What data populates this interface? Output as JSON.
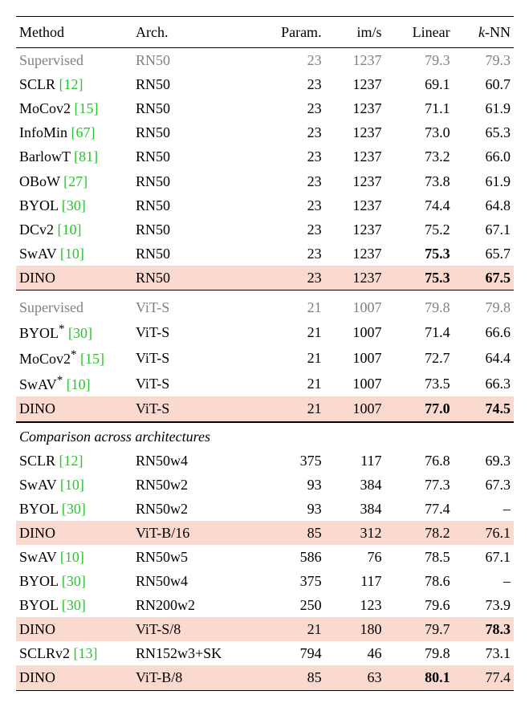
{
  "headers": {
    "method": "Method",
    "arch": "Arch.",
    "param": "Param.",
    "ims": "im/s",
    "linear": "Linear",
    "knn_prefix": "k",
    "knn_suffix": "-NN"
  },
  "section_label": "Comparison across architectures",
  "rows": [
    {
      "sec": "a",
      "gray": true,
      "hl": false,
      "method": "Supervised",
      "cite": "",
      "star": false,
      "arch": "RN50",
      "param": "23",
      "ims": "1237",
      "lin": "79.3",
      "lin_b": false,
      "knn": "79.3",
      "knn_b": false
    },
    {
      "sec": "a",
      "gray": false,
      "hl": false,
      "method": "SCLR",
      "cite": "[12]",
      "star": false,
      "arch": "RN50",
      "param": "23",
      "ims": "1237",
      "lin": "69.1",
      "lin_b": false,
      "knn": "60.7",
      "knn_b": false
    },
    {
      "sec": "a",
      "gray": false,
      "hl": false,
      "method": "MoCov2",
      "cite": "[15]",
      "star": false,
      "arch": "RN50",
      "param": "23",
      "ims": "1237",
      "lin": "71.1",
      "lin_b": false,
      "knn": "61.9",
      "knn_b": false
    },
    {
      "sec": "a",
      "gray": false,
      "hl": false,
      "method": "InfoMin",
      "cite": "[67]",
      "star": false,
      "arch": "RN50",
      "param": "23",
      "ims": "1237",
      "lin": "73.0",
      "lin_b": false,
      "knn": "65.3",
      "knn_b": false
    },
    {
      "sec": "a",
      "gray": false,
      "hl": false,
      "method": "BarlowT",
      "cite": "[81]",
      "star": false,
      "arch": "RN50",
      "param": "23",
      "ims": "1237",
      "lin": "73.2",
      "lin_b": false,
      "knn": "66.0",
      "knn_b": false
    },
    {
      "sec": "a",
      "gray": false,
      "hl": false,
      "method": "OBoW",
      "cite": "[27]",
      "star": false,
      "arch": "RN50",
      "param": "23",
      "ims": "1237",
      "lin": "73.8",
      "lin_b": false,
      "knn": "61.9",
      "knn_b": false
    },
    {
      "sec": "a",
      "gray": false,
      "hl": false,
      "method": "BYOL",
      "cite": "[30]",
      "star": false,
      "arch": "RN50",
      "param": "23",
      "ims": "1237",
      "lin": "74.4",
      "lin_b": false,
      "knn": "64.8",
      "knn_b": false
    },
    {
      "sec": "a",
      "gray": false,
      "hl": false,
      "method": "DCv2",
      "cite": "[10]",
      "star": false,
      "arch": "RN50",
      "param": "23",
      "ims": "1237",
      "lin": "75.2",
      "lin_b": false,
      "knn": "67.1",
      "knn_b": false
    },
    {
      "sec": "a",
      "gray": false,
      "hl": false,
      "method": "SwAV",
      "cite": "[10]",
      "star": false,
      "arch": "RN50",
      "param": "23",
      "ims": "1237",
      "lin": "75.3",
      "lin_b": true,
      "knn": "65.7",
      "knn_b": false
    },
    {
      "sec": "a",
      "gray": false,
      "hl": true,
      "method": "DINO",
      "cite": "",
      "star": false,
      "arch": "RN50",
      "param": "23",
      "ims": "1237",
      "lin": "75.3",
      "lin_b": true,
      "knn": "67.5",
      "knn_b": true
    },
    {
      "sec": "b",
      "gray": true,
      "hl": false,
      "method": "Supervised",
      "cite": "",
      "star": false,
      "arch": "ViT-S",
      "param": "21",
      "ims": "1007",
      "lin": "79.8",
      "lin_b": false,
      "knn": "79.8",
      "knn_b": false
    },
    {
      "sec": "b",
      "gray": false,
      "hl": false,
      "method": "BYOL",
      "cite": "[30]",
      "star": true,
      "arch": "ViT-S",
      "param": "21",
      "ims": "1007",
      "lin": "71.4",
      "lin_b": false,
      "knn": "66.6",
      "knn_b": false
    },
    {
      "sec": "b",
      "gray": false,
      "hl": false,
      "method": "MoCov2",
      "cite": "[15]",
      "star": true,
      "arch": "ViT-S",
      "param": "21",
      "ims": "1007",
      "lin": "72.7",
      "lin_b": false,
      "knn": "64.4",
      "knn_b": false
    },
    {
      "sec": "b",
      "gray": false,
      "hl": false,
      "method": "SwAV",
      "cite": "[10]",
      "star": true,
      "arch": "ViT-S",
      "param": "21",
      "ims": "1007",
      "lin": "73.5",
      "lin_b": false,
      "knn": "66.3",
      "knn_b": false
    },
    {
      "sec": "b",
      "gray": false,
      "hl": true,
      "method": "DINO",
      "cite": "",
      "star": false,
      "arch": "ViT-S",
      "param": "21",
      "ims": "1007",
      "lin": "77.0",
      "lin_b": true,
      "knn": "74.5",
      "knn_b": true
    },
    {
      "sec": "c",
      "gray": false,
      "hl": false,
      "method": "SCLR",
      "cite": "[12]",
      "star": false,
      "arch": "RN50w4",
      "param": "375",
      "ims": "117",
      "lin": "76.8",
      "lin_b": false,
      "knn": "69.3",
      "knn_b": false
    },
    {
      "sec": "c",
      "gray": false,
      "hl": false,
      "method": "SwAV",
      "cite": "[10]",
      "star": false,
      "arch": "RN50w2",
      "param": "93",
      "ims": "384",
      "lin": "77.3",
      "lin_b": false,
      "knn": "67.3",
      "knn_b": false
    },
    {
      "sec": "c",
      "gray": false,
      "hl": false,
      "method": "BYOL",
      "cite": "[30]",
      "star": false,
      "arch": "RN50w2",
      "param": "93",
      "ims": "384",
      "lin": "77.4",
      "lin_b": false,
      "knn": "–",
      "knn_b": false
    },
    {
      "sec": "c",
      "gray": false,
      "hl": true,
      "method": "DINO",
      "cite": "",
      "star": false,
      "arch": "ViT-B/16",
      "param": "85",
      "ims": "312",
      "lin": "78.2",
      "lin_b": false,
      "knn": "76.1",
      "knn_b": false
    },
    {
      "sec": "c",
      "gray": false,
      "hl": false,
      "method": "SwAV",
      "cite": "[10]",
      "star": false,
      "arch": "RN50w5",
      "param": "586",
      "ims": "76",
      "lin": "78.5",
      "lin_b": false,
      "knn": "67.1",
      "knn_b": false
    },
    {
      "sec": "c",
      "gray": false,
      "hl": false,
      "method": "BYOL",
      "cite": "[30]",
      "star": false,
      "arch": "RN50w4",
      "param": "375",
      "ims": "117",
      "lin": "78.6",
      "lin_b": false,
      "knn": "–",
      "knn_b": false
    },
    {
      "sec": "c",
      "gray": false,
      "hl": false,
      "method": "BYOL",
      "cite": "[30]",
      "star": false,
      "arch": "RN200w2",
      "param": "250",
      "ims": "123",
      "lin": "79.6",
      "lin_b": false,
      "knn": "73.9",
      "knn_b": false
    },
    {
      "sec": "c",
      "gray": false,
      "hl": true,
      "method": "DINO",
      "cite": "",
      "star": false,
      "arch": "ViT-S/8",
      "param": "21",
      "ims": "180",
      "lin": "79.7",
      "lin_b": false,
      "knn": "78.3",
      "knn_b": true
    },
    {
      "sec": "c",
      "gray": false,
      "hl": false,
      "method": "SCLRv2",
      "cite": "[13]",
      "star": false,
      "arch": "RN152w3+SK",
      "param": "794",
      "ims": "46",
      "lin": "79.8",
      "lin_b": false,
      "knn": "73.1",
      "knn_b": false
    },
    {
      "sec": "c",
      "gray": false,
      "hl": true,
      "method": "DINO",
      "cite": "",
      "star": false,
      "arch": "ViT-B/8",
      "param": "85",
      "ims": "63",
      "lin": "80.1",
      "lin_b": true,
      "knn": "77.4",
      "knn_b": false
    }
  ]
}
